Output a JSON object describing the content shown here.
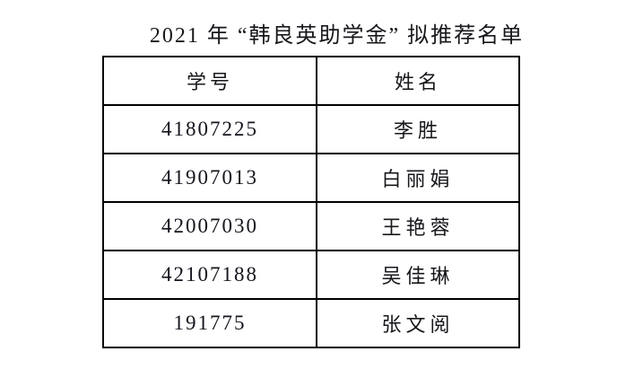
{
  "title": "2021 年 “韩良英助学金” 拟推荐名单",
  "table": {
    "columns": [
      "学号",
      "姓名"
    ],
    "rows": [
      {
        "student_id": "41807225",
        "name": "李胜"
      },
      {
        "student_id": "41907013",
        "name": "白丽娟"
      },
      {
        "student_id": "42007030",
        "name": "王艳蓉"
      },
      {
        "student_id": "42107188",
        "name": "吴佳琳"
      },
      {
        "student_id": "191775",
        "name": "张文阅"
      }
    ]
  }
}
